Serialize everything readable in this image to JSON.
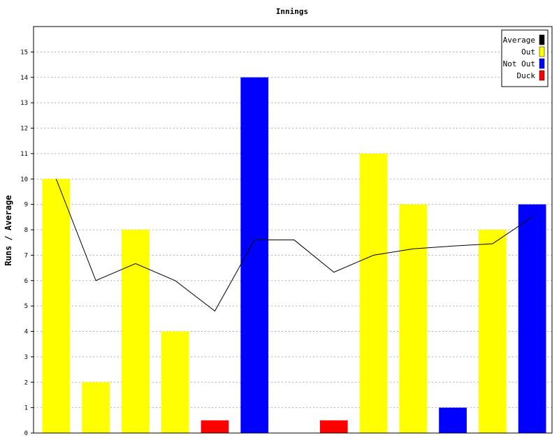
{
  "chart_data": {
    "type": "bar",
    "title": "Innings",
    "xlabel": "",
    "ylabel": "Runs / Average",
    "ylim": [
      0,
      16
    ],
    "yticks": [
      0,
      1,
      2,
      3,
      4,
      5,
      6,
      7,
      8,
      9,
      10,
      11,
      12,
      13,
      14,
      15
    ],
    "grid": true,
    "legend_position": "top-right",
    "colors": {
      "Average": "#000000",
      "Out": "#ffff00",
      "Not Out": "#0000ff",
      "Duck": "#ff0000"
    },
    "legend": [
      "Average",
      "Out",
      "Not Out",
      "Duck"
    ],
    "bars": [
      {
        "value": 10,
        "status": "Out"
      },
      {
        "value": 2,
        "status": "Out"
      },
      {
        "value": 8,
        "status": "Out"
      },
      {
        "value": 4,
        "status": "Out"
      },
      {
        "value": 0.5,
        "status": "Duck"
      },
      {
        "value": 14,
        "status": "Not Out"
      },
      {
        "value": 0,
        "status": "None"
      },
      {
        "value": 0.5,
        "status": "Duck"
      },
      {
        "value": 11,
        "status": "Out"
      },
      {
        "value": 9,
        "status": "Out"
      },
      {
        "value": 1,
        "status": "Not Out"
      },
      {
        "value": 8,
        "status": "Out"
      },
      {
        "value": 9,
        "status": "Not Out"
      }
    ],
    "average": [
      10,
      6,
      6.67,
      6,
      4.8,
      7.6,
      7.6,
      6.33,
      7,
      7.25,
      7.36,
      7.45,
      8.5
    ]
  }
}
